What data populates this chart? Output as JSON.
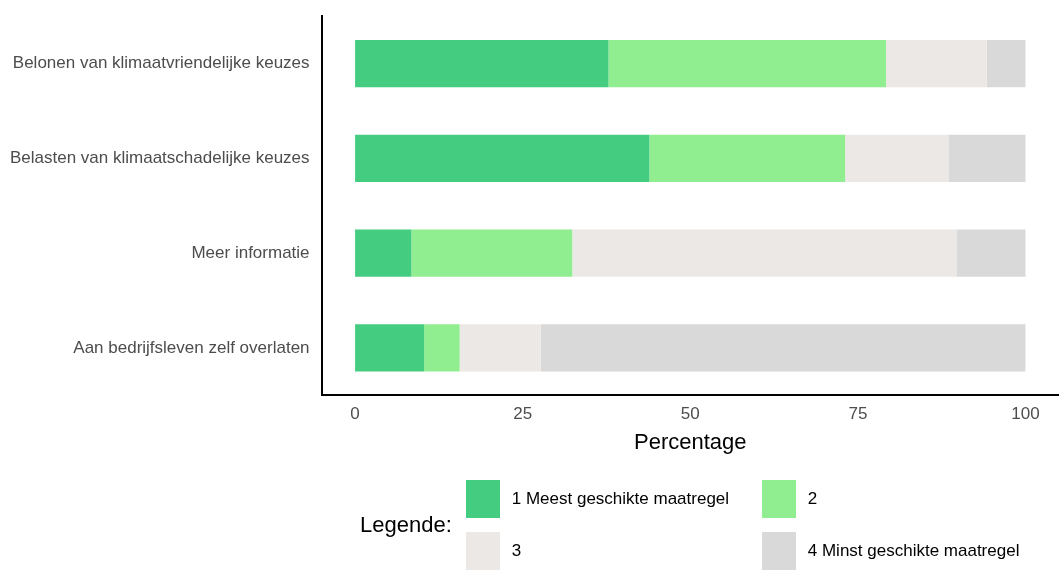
{
  "chart_data": {
    "type": "bar",
    "orientation": "horizontal",
    "stacked": true,
    "xlabel": "Percentage",
    "legend_title": "Legende:",
    "legend": "bottom",
    "grid": false,
    "categories": [
      "Belonen van klimaatvriendelijke keuzes",
      "Belasten van klimaatschadelijke keuzes",
      "Meer informatie",
      "Aan bedrijfsleven zelf overlaten"
    ],
    "series": [
      {
        "name": "1 Meest geschikte maatregel",
        "color": "#44cd80",
        "values": [
          37.8,
          43.9,
          8.4,
          10.3
        ]
      },
      {
        "name": "2",
        "color": "#90ee90",
        "values": [
          41.4,
          29.2,
          24.0,
          5.3
        ]
      },
      {
        "name": "3",
        "color": "#ece8e6",
        "values": [
          15.0,
          15.4,
          57.3,
          12.1
        ]
      },
      {
        "name": "4 Minst geschikte maatregel",
        "color": "#d9d9d9",
        "values": [
          5.8,
          11.5,
          10.3,
          72.3
        ]
      }
    ],
    "xlim": [
      -5,
      105
    ],
    "xticks": [
      0,
      25,
      50,
      75,
      100
    ]
  }
}
